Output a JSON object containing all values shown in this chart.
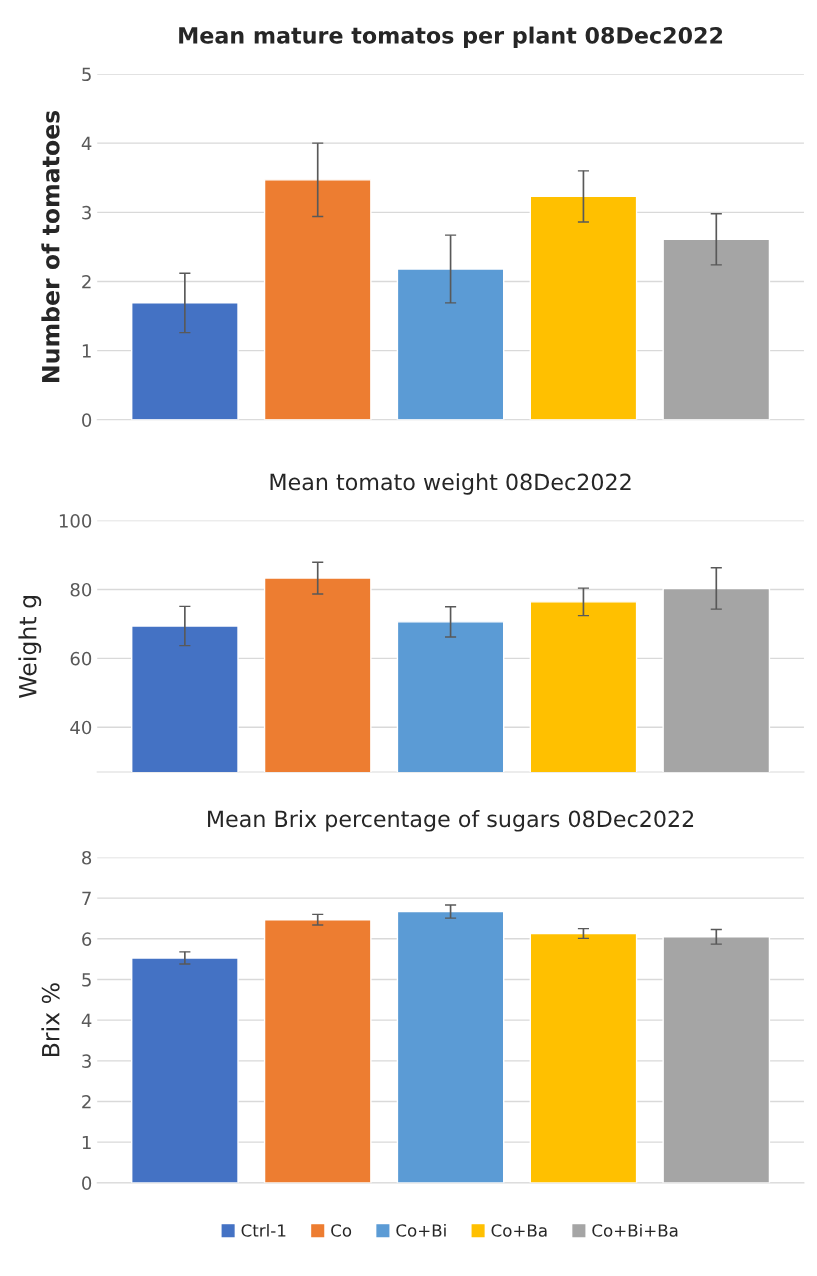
{
  "chart_data": [
    {
      "type": "bar",
      "title": "Mean mature tomatos per plant 08Dec2022",
      "ylabel": "Number of tomatoes",
      "categories": [
        null
      ],
      "ylim": [
        0,
        5
      ],
      "yticks": [
        0,
        1,
        2,
        3,
        4,
        5
      ],
      "grid": "y",
      "series": [
        {
          "color": "#4472c4",
          "values": [
            1.69
          ],
          "errors": [
            0.43
          ]
        },
        {
          "color": "#ed7d31",
          "values": [
            3.47
          ],
          "errors": [
            0.53
          ]
        },
        {
          "color": "#5b9bd5",
          "values": [
            2.18
          ],
          "errors": [
            0.49
          ]
        },
        {
          "color": "#ffc000",
          "values": [
            3.23
          ],
          "errors": [
            0.37
          ]
        },
        {
          "color": "#a5a5a5",
          "values": [
            2.61
          ],
          "errors": [
            0.37
          ]
        }
      ]
    },
    {
      "type": "bar",
      "title": "Mean tomato weight 08Dec2022",
      "ylabel": "Weight g",
      "categories": [
        null
      ],
      "ylim": [
        27,
        100
      ],
      "yticks": [
        40,
        60,
        80,
        100
      ],
      "grid": "y",
      "series": [
        {
          "color": "#4472c4",
          "values": [
            69.4
          ],
          "errors": [
            5.7
          ]
        },
        {
          "color": "#ed7d31",
          "values": [
            83.3
          ],
          "errors": [
            4.6
          ]
        },
        {
          "color": "#5b9bd5",
          "values": [
            70.6
          ],
          "errors": [
            4.4
          ]
        },
        {
          "color": "#ffc000",
          "values": [
            76.4
          ],
          "errors": [
            4.0
          ]
        },
        {
          "color": "#a5a5a5",
          "values": [
            80.3
          ],
          "errors": [
            6.0
          ]
        }
      ]
    },
    {
      "type": "bar",
      "title": "Mean Brix percentage of sugars 08Dec2022",
      "ylabel": "Brix %",
      "categories": [
        null
      ],
      "ylim": [
        0,
        8
      ],
      "yticks": [
        0,
        1,
        2,
        3,
        4,
        5,
        6,
        7,
        8
      ],
      "grid": "y",
      "legend": "bottom",
      "series": [
        {
          "name": "Ctrl-1",
          "color": "#4472c4",
          "values": [
            5.53
          ],
          "errors": [
            0.15
          ]
        },
        {
          "name": "Co",
          "color": "#ed7d31",
          "values": [
            6.47
          ],
          "errors": [
            0.13
          ]
        },
        {
          "name": "Co+Bi",
          "color": "#5b9bd5",
          "values": [
            6.67
          ],
          "errors": [
            0.16
          ]
        },
        {
          "name": "Co+Ba",
          "color": "#ffc000",
          "values": [
            6.13
          ],
          "errors": [
            0.12
          ]
        },
        {
          "name": "Co+Bi+Ba",
          "color": "#a5a5a5",
          "values": [
            6.05
          ],
          "errors": [
            0.18
          ]
        }
      ]
    }
  ]
}
